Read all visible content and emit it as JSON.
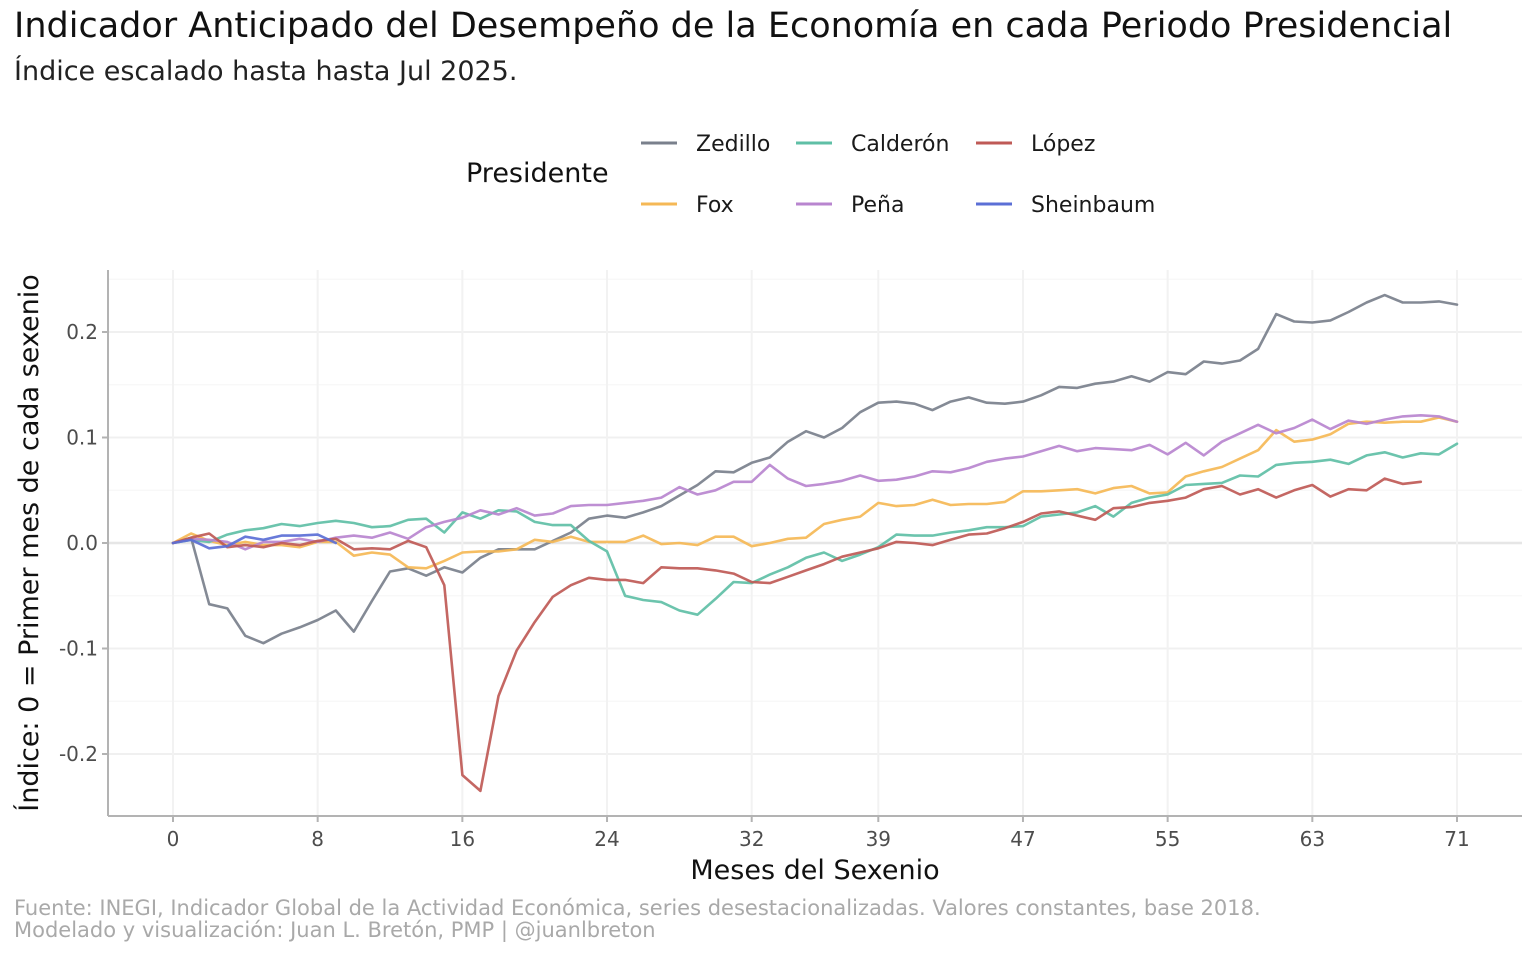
{
  "chart_data": {
    "type": "line",
    "title": "Indicador Anticipado del Desempeño de la Economía en cada Periodo Presidencial",
    "subtitle": "Índice escalado hasta hasta Jul 2025.",
    "xlabel": "Meses del Sexenio",
    "ylabel": "Índice: 0 = Primer mes de cada sexenio",
    "caption": [
      "Fuente: INEGI, Indicador Global de la Actividad Económica, series desestacionalizadas. Valores constantes, base 2018.",
      "Modelado y visualización: Juan L. Bretón, PMP | @juanlbreton"
    ],
    "x_ticks": [
      "0",
      "8",
      "16",
      "24",
      "32",
      "39",
      "47",
      "55",
      "63",
      "71"
    ],
    "y_ticks": [
      "0.2",
      "0.1",
      "0.0",
      "-0.1",
      "-0.2"
    ],
    "xlim": [
      0,
      71
    ],
    "ylim": [
      -0.25,
      0.26
    ],
    "grid": true,
    "legend": {
      "title": "Presidente",
      "position": "top"
    },
    "series": [
      {
        "name": "Zedillo",
        "color": "#7a808c",
        "values": [
          0,
          0.005,
          -0.058,
          -0.062,
          -0.088,
          -0.095,
          -0.086,
          -0.08,
          -0.073,
          -0.064,
          -0.084,
          -0.055,
          -0.027,
          -0.024,
          -0.031,
          -0.023,
          -0.028,
          -0.014,
          -0.006,
          -0.006,
          -0.006,
          0.002,
          0.01,
          0.023,
          0.026,
          0.024,
          0.029,
          0.035,
          0.045,
          0.055,
          0.068,
          0.067,
          0.076,
          0.081,
          0.096,
          0.106,
          0.1,
          0.109,
          0.124,
          0.133,
          0.134,
          0.132,
          0.126,
          0.134,
          0.138,
          0.133,
          0.132,
          0.134,
          0.14,
          0.148,
          0.147,
          0.151,
          0.153,
          0.158,
          0.153,
          0.162,
          0.16,
          0.172,
          0.17,
          0.173,
          0.184,
          0.217,
          0.21,
          0.209,
          0.211,
          0.219,
          0.228,
          0.235,
          0.228,
          0.228,
          0.229,
          0.226
        ]
      },
      {
        "name": "Fox",
        "color": "#f5b856",
        "values": [
          0,
          0.009,
          0.002,
          -0.002,
          0.001,
          -0.002,
          -0.002,
          -0.004,
          0.001,
          0.001,
          -0.012,
          -0.009,
          -0.011,
          -0.023,
          -0.024,
          -0.017,
          -0.009,
          -0.008,
          -0.008,
          -0.006,
          0.003,
          0.001,
          0.006,
          0.001,
          0.001,
          0.001,
          0.007,
          -0.001,
          0.0,
          -0.002,
          0.006,
          0.006,
          -0.003,
          0.0,
          0.004,
          0.005,
          0.018,
          0.022,
          0.025,
          0.038,
          0.035,
          0.036,
          0.041,
          0.036,
          0.037,
          0.037,
          0.039,
          0.049,
          0.049,
          0.05,
          0.051,
          0.047,
          0.052,
          0.054,
          0.047,
          0.048,
          0.063,
          0.068,
          0.072,
          0.08,
          0.088,
          0.107,
          0.096,
          0.098,
          0.103,
          0.113,
          0.115,
          0.114,
          0.115,
          0.115,
          0.119,
          0.115
        ]
      },
      {
        "name": "Calderón",
        "color": "#5fbfa6",
        "values": [
          0,
          0.003,
          0.001,
          0.008,
          0.012,
          0.014,
          0.018,
          0.016,
          0.019,
          0.021,
          0.019,
          0.015,
          0.016,
          0.022,
          0.023,
          0.01,
          0.029,
          0.023,
          0.031,
          0.03,
          0.02,
          0.017,
          0.017,
          0.002,
          -0.008,
          -0.05,
          -0.054,
          -0.056,
          -0.064,
          -0.068,
          -0.053,
          -0.037,
          -0.038,
          -0.03,
          -0.023,
          -0.014,
          -0.009,
          -0.017,
          -0.011,
          -0.004,
          0.008,
          0.007,
          0.007,
          0.01,
          0.012,
          0.015,
          0.015,
          0.016,
          0.025,
          0.027,
          0.029,
          0.035,
          0.025,
          0.038,
          0.043,
          0.046,
          0.055,
          0.056,
          0.057,
          0.064,
          0.063,
          0.074,
          0.076,
          0.077,
          0.079,
          0.075,
          0.083,
          0.086,
          0.081,
          0.085,
          0.084,
          0.094
        ]
      },
      {
        "name": "Peña",
        "color": "#b885cf",
        "values": [
          0,
          0.004,
          0.003,
          0.001,
          -0.006,
          0.001,
          0.001,
          0.004,
          0.001,
          0.005,
          0.007,
          0.005,
          0.01,
          0.004,
          0.015,
          0.02,
          0.024,
          0.031,
          0.027,
          0.033,
          0.026,
          0.028,
          0.035,
          0.036,
          0.036,
          0.038,
          0.04,
          0.043,
          0.053,
          0.046,
          0.05,
          0.058,
          0.058,
          0.074,
          0.061,
          0.054,
          0.056,
          0.059,
          0.064,
          0.059,
          0.06,
          0.063,
          0.068,
          0.067,
          0.071,
          0.077,
          0.08,
          0.082,
          0.087,
          0.092,
          0.087,
          0.09,
          0.089,
          0.088,
          0.093,
          0.084,
          0.095,
          0.083,
          0.096,
          0.104,
          0.112,
          0.104,
          0.109,
          0.117,
          0.108,
          0.116,
          0.113,
          0.117,
          0.12,
          0.121,
          0.12,
          0.115
        ]
      },
      {
        "name": "López",
        "color": "#bf5a56",
        "values": [
          0,
          0.005,
          0.009,
          -0.004,
          -0.002,
          -0.004,
          0.0,
          -0.002,
          0.002,
          0.004,
          -0.006,
          -0.005,
          -0.006,
          0.002,
          -0.004,
          -0.04,
          -0.22,
          -0.235,
          -0.145,
          -0.102,
          -0.075,
          -0.051,
          -0.04,
          -0.033,
          -0.035,
          -0.035,
          -0.038,
          -0.023,
          -0.024,
          -0.024,
          -0.026,
          -0.029,
          -0.037,
          -0.038,
          -0.032,
          -0.026,
          -0.02,
          -0.013,
          -0.009,
          -0.005,
          0.001,
          0.0,
          -0.002,
          0.003,
          0.008,
          0.009,
          0.014,
          0.02,
          0.028,
          0.03,
          0.026,
          0.022,
          0.033,
          0.034,
          0.038,
          0.04,
          0.043,
          0.051,
          0.054,
          0.046,
          0.051,
          0.043,
          0.05,
          0.055,
          0.044,
          0.051,
          0.05,
          0.061,
          0.056,
          0.058
        ]
      },
      {
        "name": "Sheinbaum",
        "color": "#5b6fd6",
        "values": [
          0,
          0.003,
          -0.005,
          -0.003,
          0.006,
          0.003,
          0.007,
          0.007,
          0.008,
          0.0
        ]
      }
    ]
  }
}
